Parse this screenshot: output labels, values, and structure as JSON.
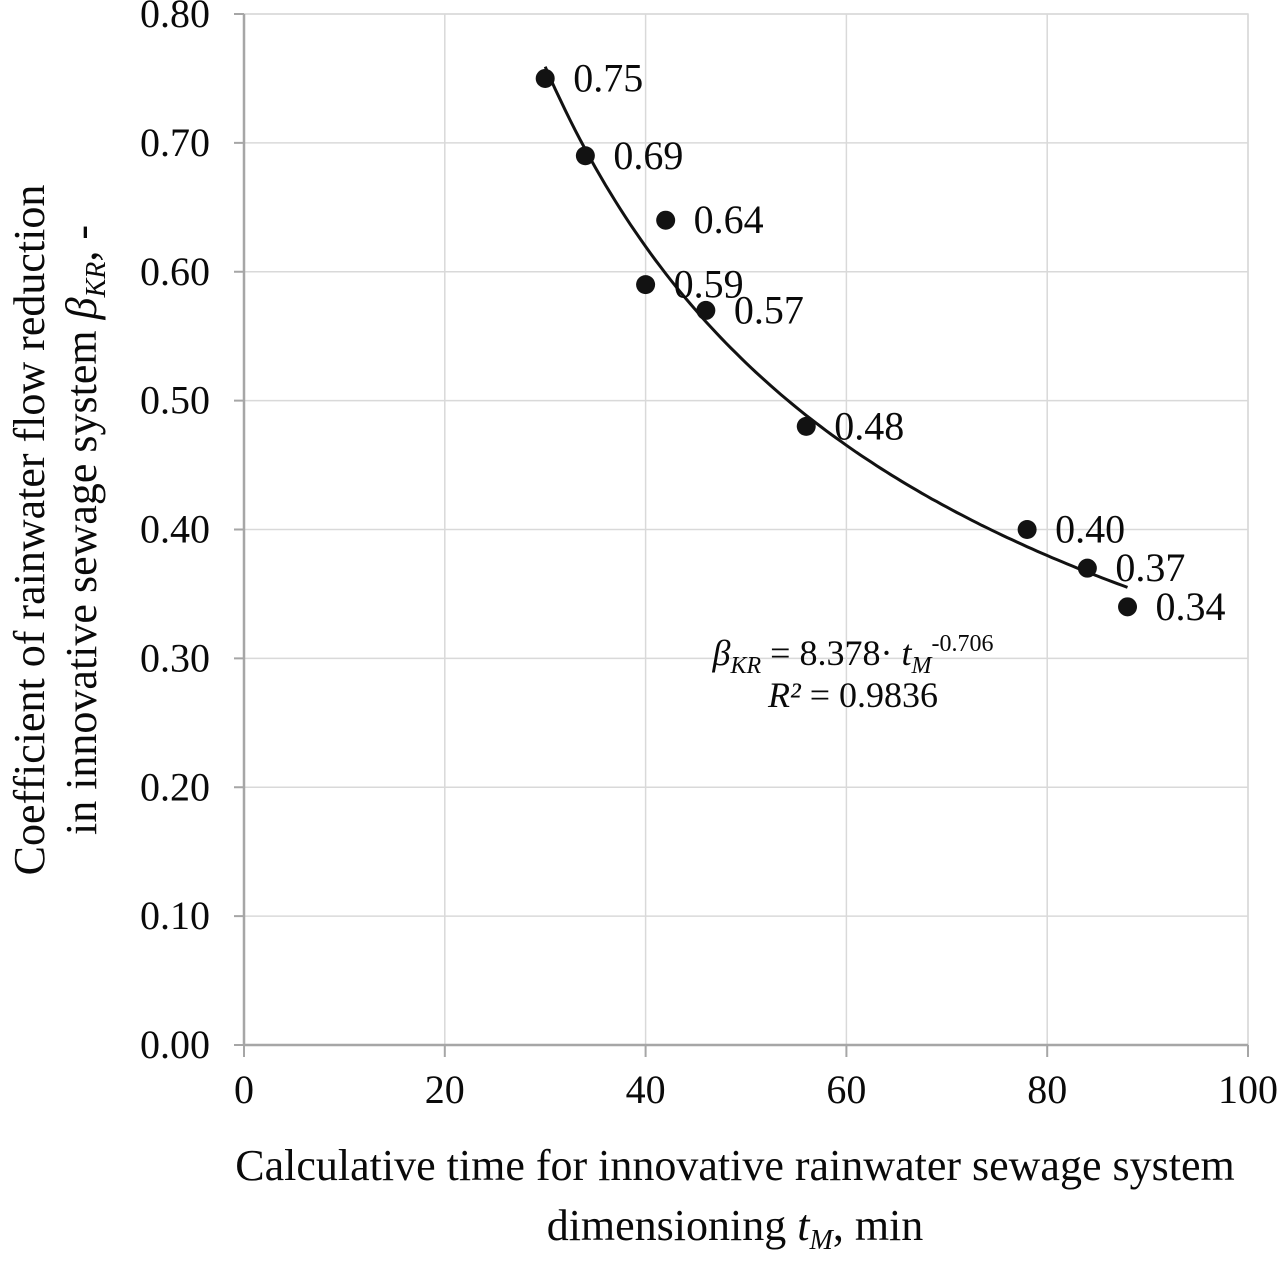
{
  "chart_data": {
    "type": "scatter",
    "x": [
      30,
      34,
      42,
      40,
      46,
      56,
      78,
      84,
      88
    ],
    "y": [
      0.75,
      0.69,
      0.64,
      0.59,
      0.57,
      0.48,
      0.4,
      0.37,
      0.34
    ],
    "point_labels": [
      "0.75",
      "0.69",
      "0.64",
      "0.59",
      "0.57",
      "0.48",
      "0.40",
      "0.37",
      "0.34"
    ],
    "xlabel": "Calculative time for innovative rainwater sewage system dimensioning tM, min",
    "ylabel": "Coefficient of rainwater flow reduction in innovative sewage system BKR, -",
    "xlim": [
      0,
      100
    ],
    "ylim": [
      0,
      0.8
    ],
    "x_ticks": [
      0,
      20,
      40,
      60,
      80,
      100
    ],
    "y_ticks": [
      "0.00",
      "0.10",
      "0.20",
      "0.30",
      "0.40",
      "0.50",
      "0.60",
      "0.70",
      "0.80"
    ],
    "grid": true,
    "legend": false,
    "trendline": {
      "type": "power",
      "a": 8.378,
      "b": -0.706,
      "t_start": 30,
      "t_end": 88
    },
    "equation_text": "BKR = 8.378 * tM^-0.706",
    "r_squared_text": "R2 = 0.9836",
    "marker_color": "#121212",
    "line_color": "#121212",
    "grid_color": "#d9d9d9",
    "axis_color": "#a6a6a6"
  },
  "labels": {
    "y_title": {
      "line1": "Coefficient of rainwater flow reduction",
      "line2_pre": "in innovative sewage system ",
      "symbol": "β",
      "symbol_sub": "KR",
      "line2_post": ", -"
    },
    "x_title": {
      "line1": "Calculative time for innovative rainwater sewage system",
      "line2_pre": "dimensioning ",
      "symbol": "t",
      "symbol_sub": "M",
      "line2_post": ", min"
    },
    "equation": {
      "symbol": "β",
      "symbol_sub": "KR",
      "mid": " = 8.378· ",
      "t_symbol": "t",
      "t_sub": "M",
      "exponent": "-0.706",
      "r2_symbol": "R²",
      "r2_rest": " = 0.9836"
    }
  }
}
